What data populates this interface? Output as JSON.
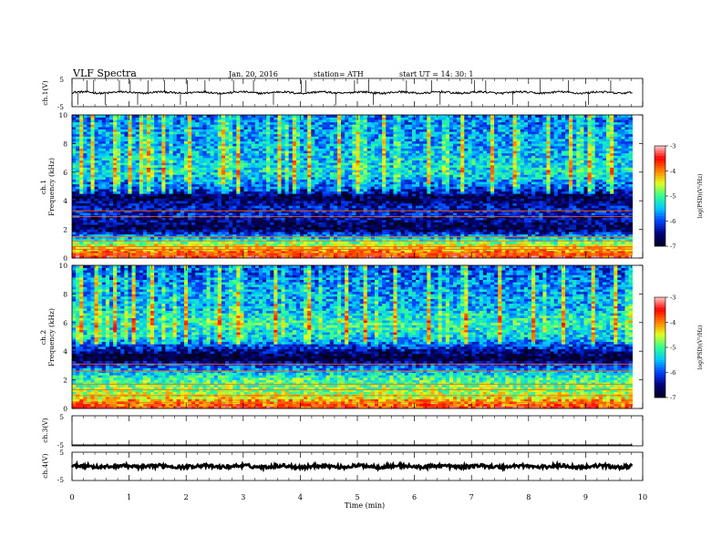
{
  "header": {
    "title": "VLF  Spectra",
    "date": "Jan. 20, 2016",
    "station": "station= ATH",
    "start_ut": "start  UT  =    14: 30: 1"
  },
  "colors": {
    "colormap": [
      "#000020",
      "#00007a",
      "#0040ff",
      "#00c8ff",
      "#30ff90",
      "#e0ff20",
      "#ff8000",
      "#ff0000",
      "#ffc8c8"
    ]
  },
  "chart_data": [
    {
      "type": "line",
      "name": "ch1-waveform",
      "ylabel": "ch.1(V)",
      "ylim": [
        -5,
        5
      ],
      "yticks": [
        "5",
        "-5"
      ],
      "baseline": 0,
      "spikes_min": [
        0.1,
        0.26,
        0.38,
        0.58,
        0.83,
        1.02,
        1.15,
        1.33,
        1.62,
        1.9,
        2.02,
        2.33,
        2.6,
        2.83,
        3.18,
        3.53,
        4.02,
        4.1,
        4.62,
        4.95,
        5.2,
        5.28,
        5.86,
        6.3,
        6.45,
        7.05,
        7.25,
        7.72,
        8.2,
        8.7,
        9.05,
        9.44
      ]
    },
    {
      "type": "heatmap",
      "name": "ch1-spectrogram",
      "ylabel_top": "ch.1",
      "ylabel": "Frequency  (kHz)",
      "ylim": [
        0,
        10
      ],
      "yticks": [
        "0",
        "2",
        "4",
        "6",
        "8",
        "10"
      ],
      "colorbar_label": "log(PSD)(V²/Hz)",
      "colorbar_range": [
        -7,
        -3
      ],
      "colorbar_ticks": [
        "-3",
        "-4",
        "-5",
        "-6",
        "-7"
      ],
      "freq_profile_khz": [
        0.0,
        1.0,
        2.0,
        2.5,
        3.0,
        3.6,
        4.2,
        5.0,
        6.0,
        6.6,
        8.0,
        10.0
      ],
      "freq_profile_log_psd": [
        -3.5,
        -4.6,
        -6.7,
        -6.6,
        -6.2,
        -6.3,
        -6.8,
        -5.9,
        -5.3,
        -5.4,
        -5.6,
        -5.8
      ],
      "tones_khz": [
        0.2,
        0.35,
        0.6,
        0.8,
        1.2,
        1.5,
        2.9,
        3.3
      ],
      "impulses_min": [
        0.13,
        0.36,
        0.7,
        1.0,
        1.17,
        1.31,
        1.6,
        2.05,
        2.61,
        2.87,
        3.6,
        3.85,
        4.1,
        4.65,
        5.0,
        5.42,
        6.25,
        6.8,
        7.3,
        7.72,
        8.33,
        8.7,
        9.05,
        9.4
      ]
    },
    {
      "type": "heatmap",
      "name": "ch2-spectrogram",
      "ylabel_top": "ch.2",
      "ylabel": "Frequency  (kHz)",
      "ylim": [
        0,
        10
      ],
      "yticks": [
        "0",
        "2",
        "4",
        "6",
        "8",
        "10"
      ],
      "colorbar_label": "log(PSD)(V²/Hz)",
      "colorbar_range": [
        -7,
        -3
      ],
      "colorbar_ticks": [
        "-3",
        "-4",
        "-5",
        "-6",
        "-7"
      ],
      "freq_profile_khz": [
        0.0,
        1.0,
        2.0,
        2.5,
        3.0,
        3.5,
        4.2,
        5.0,
        6.0,
        7.0,
        8.5,
        10.0
      ],
      "freq_profile_log_psd": [
        -3.6,
        -4.6,
        -5.0,
        -5.4,
        -6.0,
        -7.0,
        -6.2,
        -5.4,
        -5.1,
        -5.5,
        -5.7,
        -6.0
      ],
      "tones_khz": [
        0.4,
        0.9,
        1.3,
        1.7,
        2.6,
        3.1
      ],
      "impulses_min": [
        0.11,
        0.42,
        0.73,
        1.02,
        1.4,
        1.95,
        2.55,
        2.9,
        3.55,
        4.15,
        4.75,
        5.12,
        5.6,
        6.22,
        6.9,
        7.45,
        8.05,
        8.6,
        9.1,
        9.52
      ]
    },
    {
      "type": "line",
      "name": "ch3-waveform",
      "ylabel": "ch.3(V)",
      "ylim": [
        -5,
        5
      ],
      "yticks": [
        "5",
        "-5"
      ],
      "baseline": -5
    },
    {
      "type": "line",
      "name": "ch4-waveform",
      "ylabel": "ch.4(V)",
      "ylim": [
        -5,
        5
      ],
      "yticks": [
        "5",
        "-5"
      ],
      "baseline": 0
    }
  ],
  "xaxis": {
    "label": "Time  (min)",
    "xlim": [
      0,
      10
    ],
    "ticks": [
      "0",
      "1",
      "2",
      "3",
      "4",
      "5",
      "6",
      "7",
      "8",
      "9",
      "10"
    ],
    "data_end_min": 9.82
  }
}
